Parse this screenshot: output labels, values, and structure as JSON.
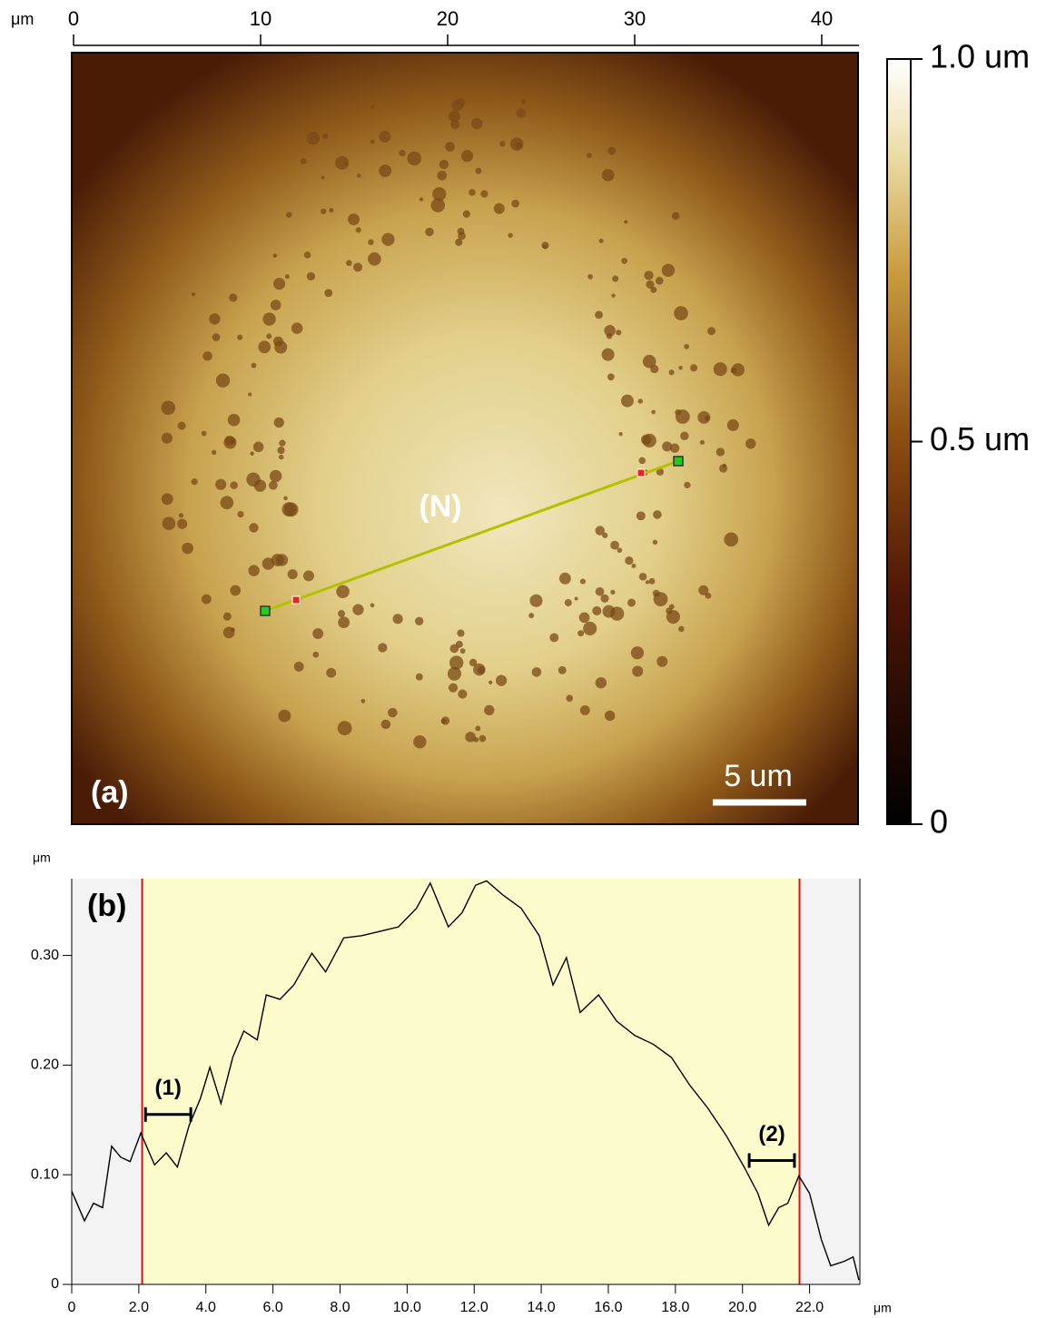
{
  "chart_data": [
    {
      "type": "image",
      "x_unit": "μm",
      "xlim": [
        0,
        42
      ],
      "xticks": [
        0,
        10,
        20,
        30,
        40
      ],
      "panel_label": "(a)",
      "line_label": "(N)",
      "scale_bar": {
        "label": "5 um",
        "length": 5
      },
      "colorbar": {
        "lim": [
          0,
          1.0
        ],
        "ticks": [
          0,
          {
            "value": 0.5,
            "label": "0.5 um"
          },
          {
            "value": 1.0,
            "label": "1.0 um"
          }
        ]
      }
    },
    {
      "type": "line",
      "panel_label": "(b)",
      "x_unit": "μm",
      "y_unit": "μm",
      "xlim": [
        0,
        23.5
      ],
      "ylim": [
        0,
        0.37
      ],
      "xticks": [
        0,
        {
          "value": 2,
          "label": "2.0"
        },
        {
          "value": 4,
          "label": "4.0"
        },
        {
          "value": 6,
          "label": "6.0"
        },
        {
          "value": 8,
          "label": "8.0"
        },
        {
          "value": 10,
          "label": "10.0"
        },
        {
          "value": 12,
          "label": "12.0"
        },
        {
          "value": 14,
          "label": "14.0"
        },
        {
          "value": 16,
          "label": "16.0"
        },
        {
          "value": 18,
          "label": "18.0"
        },
        {
          "value": 20,
          "label": "20.0"
        },
        {
          "value": 22,
          "label": "22.0"
        }
      ],
      "yticks": [
        0,
        {
          "value": 0.1,
          "label": "0.10"
        },
        {
          "value": 0.2,
          "label": "0.20"
        },
        {
          "value": 0.3,
          "label": "0.30"
        }
      ],
      "cursors": [
        2.1,
        21.7
      ],
      "intervals": [
        {
          "label": "(1)",
          "x": [
            2.2,
            3.55
          ],
          "y": 0.155
        },
        {
          "label": "(2)",
          "x": [
            20.2,
            21.55
          ],
          "y": 0.113
        }
      ],
      "x": [
        0,
        0.38,
        0.65,
        0.92,
        1.19,
        1.46,
        1.74,
        2.06,
        2.47,
        2.82,
        3.15,
        3.5,
        3.83,
        4.12,
        4.45,
        4.8,
        5.13,
        5.53,
        5.8,
        6.21,
        6.62,
        7.16,
        7.57,
        8.11,
        8.65,
        9.2,
        9.74,
        10.28,
        10.69,
        11.23,
        11.64,
        12.04,
        12.37,
        12.86,
        13.4,
        13.94,
        14.35,
        14.75,
        15.16,
        15.71,
        16.25,
        16.79,
        17.34,
        17.88,
        18.42,
        18.96,
        19.51,
        20.05,
        20.46,
        20.78,
        21.08,
        21.35,
        21.68,
        22.0,
        22.35,
        22.63,
        23.03,
        23.3,
        23.47
      ],
      "series": [
        {
          "color": "#000000",
          "values": [
            0.085,
            0.058,
            0.074,
            0.07,
            0.126,
            0.116,
            0.112,
            0.138,
            0.109,
            0.12,
            0.107,
            0.145,
            0.169,
            0.198,
            0.165,
            0.207,
            0.231,
            0.223,
            0.264,
            0.26,
            0.273,
            0.302,
            0.285,
            0.316,
            0.318,
            0.322,
            0.326,
            0.343,
            0.366,
            0.326,
            0.339,
            0.364,
            0.368,
            0.355,
            0.343,
            0.318,
            0.273,
            0.298,
            0.248,
            0.264,
            0.24,
            0.227,
            0.219,
            0.207,
            0.182,
            0.161,
            0.136,
            0.107,
            0.083,
            0.054,
            0.07,
            0.074,
            0.099,
            0.083,
            0.041,
            0.017,
            0.021,
            0.025,
            0.004
          ]
        }
      ]
    }
  ]
}
